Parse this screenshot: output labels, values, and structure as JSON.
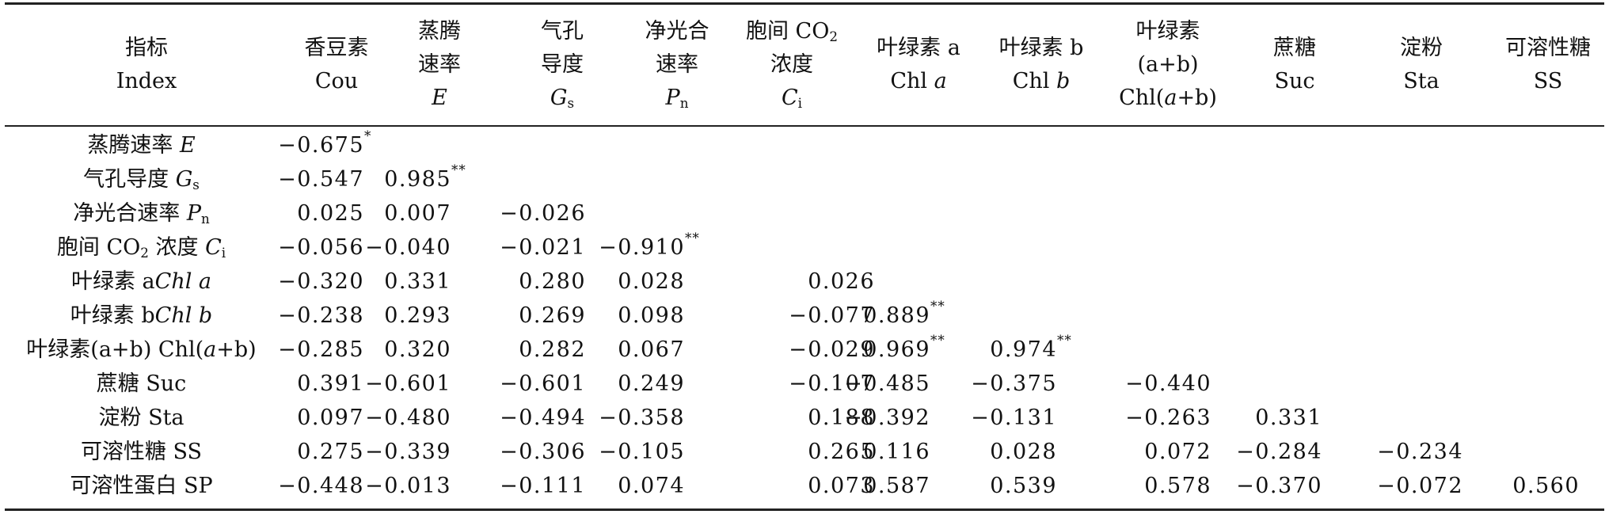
{
  "header": {
    "index": {
      "zh": "指标",
      "en": "Index"
    },
    "cou": {
      "zh": "香豆素",
      "en": "Cou"
    },
    "e": {
      "zh1": "蒸腾",
      "zh2": "速率",
      "sym": "E"
    },
    "gs": {
      "zh1": "气孔",
      "zh2": "导度",
      "sym": "G",
      "sub": "s"
    },
    "pn": {
      "zh1": "净光合",
      "zh2": "速率",
      "sym": "P",
      "sub": "n"
    },
    "ci": {
      "zh1": "胞间 CO",
      "sub2": "2",
      "zh2": "浓度",
      "sym": "C",
      "sub": "i"
    },
    "chla": {
      "zh": "叶绿素 a",
      "en_pre": "Chl ",
      "en_it": "a"
    },
    "chlb": {
      "zh": "叶绿素 b",
      "en_pre": "Chl ",
      "en_it": "b"
    },
    "chlab": {
      "zh": "叶绿素",
      "mid": "(a+b)",
      "en_pre": "Chl(",
      "en_it": "a",
      "en_post": "+b)"
    },
    "suc": {
      "zh": "蔗糖",
      "en": "Suc"
    },
    "sta": {
      "zh": "淀粉",
      "en": "Sta"
    },
    "ss": {
      "zh": "可溶性糖",
      "en": "SS"
    }
  },
  "rows": [
    {
      "label": {
        "pre": "蒸腾速率 ",
        "it": "E"
      },
      "cells": [
        {
          "v": "-0.675",
          "sig": "*"
        }
      ]
    },
    {
      "label": {
        "pre": "气孔导度 ",
        "it": "G",
        "sub": "s"
      },
      "cells": [
        {
          "v": "-0.547"
        },
        {
          "v": "0.985",
          "sig": "**"
        }
      ]
    },
    {
      "label": {
        "pre": "净光合速率 ",
        "it": "P",
        "sub": "n"
      },
      "cells": [
        {
          "v": "0.025"
        },
        {
          "v": "0.007"
        },
        {
          "v": "-0.026"
        }
      ]
    },
    {
      "label": {
        "pre": "胞间 CO",
        "presub": "2",
        "mid": " 浓度 ",
        "it": "C",
        "sub": "i"
      },
      "cells": [
        {
          "v": "-0.056"
        },
        {
          "v": "-0.040"
        },
        {
          "v": "-0.021"
        },
        {
          "v": "-0.910",
          "sig": "**"
        }
      ]
    },
    {
      "label": {
        "pre": "叶绿素 a",
        "it": "Chl a"
      },
      "cells": [
        {
          "v": "-0.320"
        },
        {
          "v": "0.331"
        },
        {
          "v": "0.280"
        },
        {
          "v": "0.028"
        },
        {
          "v": "0.026"
        }
      ]
    },
    {
      "label": {
        "pre": "叶绿素 b",
        "it": "Chl b"
      },
      "cells": [
        {
          "v": "-0.238"
        },
        {
          "v": "0.293"
        },
        {
          "v": "0.269"
        },
        {
          "v": "0.098"
        },
        {
          "v": "-0.077"
        },
        {
          "v": "0.889",
          "sig": "**"
        }
      ]
    },
    {
      "label": {
        "pre": "叶绿素(a+b) Chl(",
        "it": "a",
        "post": "+b)"
      },
      "cells": [
        {
          "v": "-0.285"
        },
        {
          "v": "0.320"
        },
        {
          "v": "0.282"
        },
        {
          "v": "0.067"
        },
        {
          "v": "-0.029"
        },
        {
          "v": "0.969",
          "sig": "**"
        },
        {
          "v": "0.974",
          "sig": "**"
        }
      ]
    },
    {
      "label": {
        "pre": "蔗糖 Suc"
      },
      "cells": [
        {
          "v": "0.391"
        },
        {
          "v": "-0.601"
        },
        {
          "v": "-0.601"
        },
        {
          "v": "0.249"
        },
        {
          "v": "-0.107"
        },
        {
          "v": "-0.485"
        },
        {
          "v": "-0.375"
        },
        {
          "v": "-0.440"
        }
      ]
    },
    {
      "label": {
        "pre": "淀粉 Sta"
      },
      "cells": [
        {
          "v": "0.097"
        },
        {
          "v": "-0.480"
        },
        {
          "v": "-0.494"
        },
        {
          "v": "-0.358"
        },
        {
          "v": "0.188"
        },
        {
          "v": "-0.392"
        },
        {
          "v": "-0.131"
        },
        {
          "v": "-0.263"
        },
        {
          "v": "0.331"
        }
      ]
    },
    {
      "label": {
        "pre": "可溶性糖 SS"
      },
      "cells": [
        {
          "v": "0.275"
        },
        {
          "v": "-0.339"
        },
        {
          "v": "-0.306"
        },
        {
          "v": "-0.105"
        },
        {
          "v": "0.265"
        },
        {
          "v": "0.116"
        },
        {
          "v": "0.028"
        },
        {
          "v": "0.072"
        },
        {
          "v": "-0.284"
        },
        {
          "v": "-0.234"
        }
      ]
    },
    {
      "label": {
        "pre": "可溶性蛋白 SP"
      },
      "cells": [
        {
          "v": "-0.448"
        },
        {
          "v": "-0.013"
        },
        {
          "v": "-0.111"
        },
        {
          "v": "0.074"
        },
        {
          "v": "0.073"
        },
        {
          "v": "0.587"
        },
        {
          "v": "0.539"
        },
        {
          "v": "0.578"
        },
        {
          "v": "-0.370"
        },
        {
          "v": "-0.072"
        },
        {
          "v": "0.560"
        }
      ]
    }
  ]
}
